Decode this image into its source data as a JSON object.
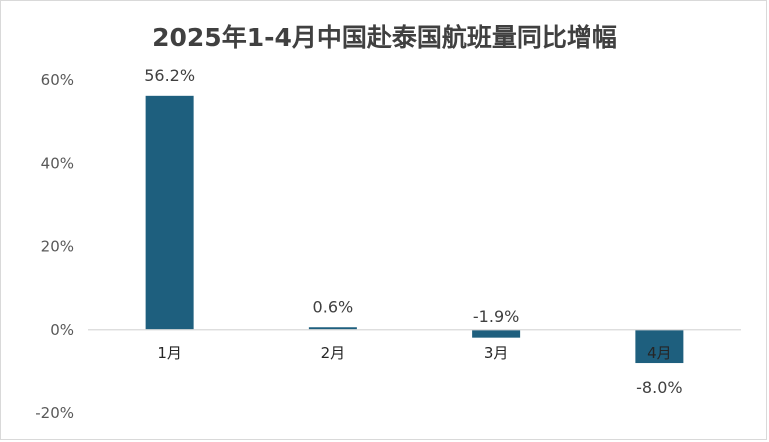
{
  "chart_data": {
    "type": "bar",
    "title": "2025年1-4月中国赴泰国航班量同比增幅",
    "categories": [
      "1月",
      "2月",
      "3月",
      "4月"
    ],
    "values": [
      56.2,
      0.6,
      -1.9,
      -8.0
    ],
    "data_labels": [
      "56.2%",
      "0.6%",
      "-1.9%",
      "-8.0%"
    ],
    "y_ticks": [
      -20,
      0,
      20,
      40,
      60
    ],
    "y_tick_labels": [
      "-20%",
      "0%",
      "20%",
      "40%",
      "60%"
    ],
    "ylim": [
      -20,
      60
    ],
    "grid": false,
    "legend": "none",
    "bar_color": "#1e5f7e",
    "axis_color": "#d9d9d9"
  }
}
